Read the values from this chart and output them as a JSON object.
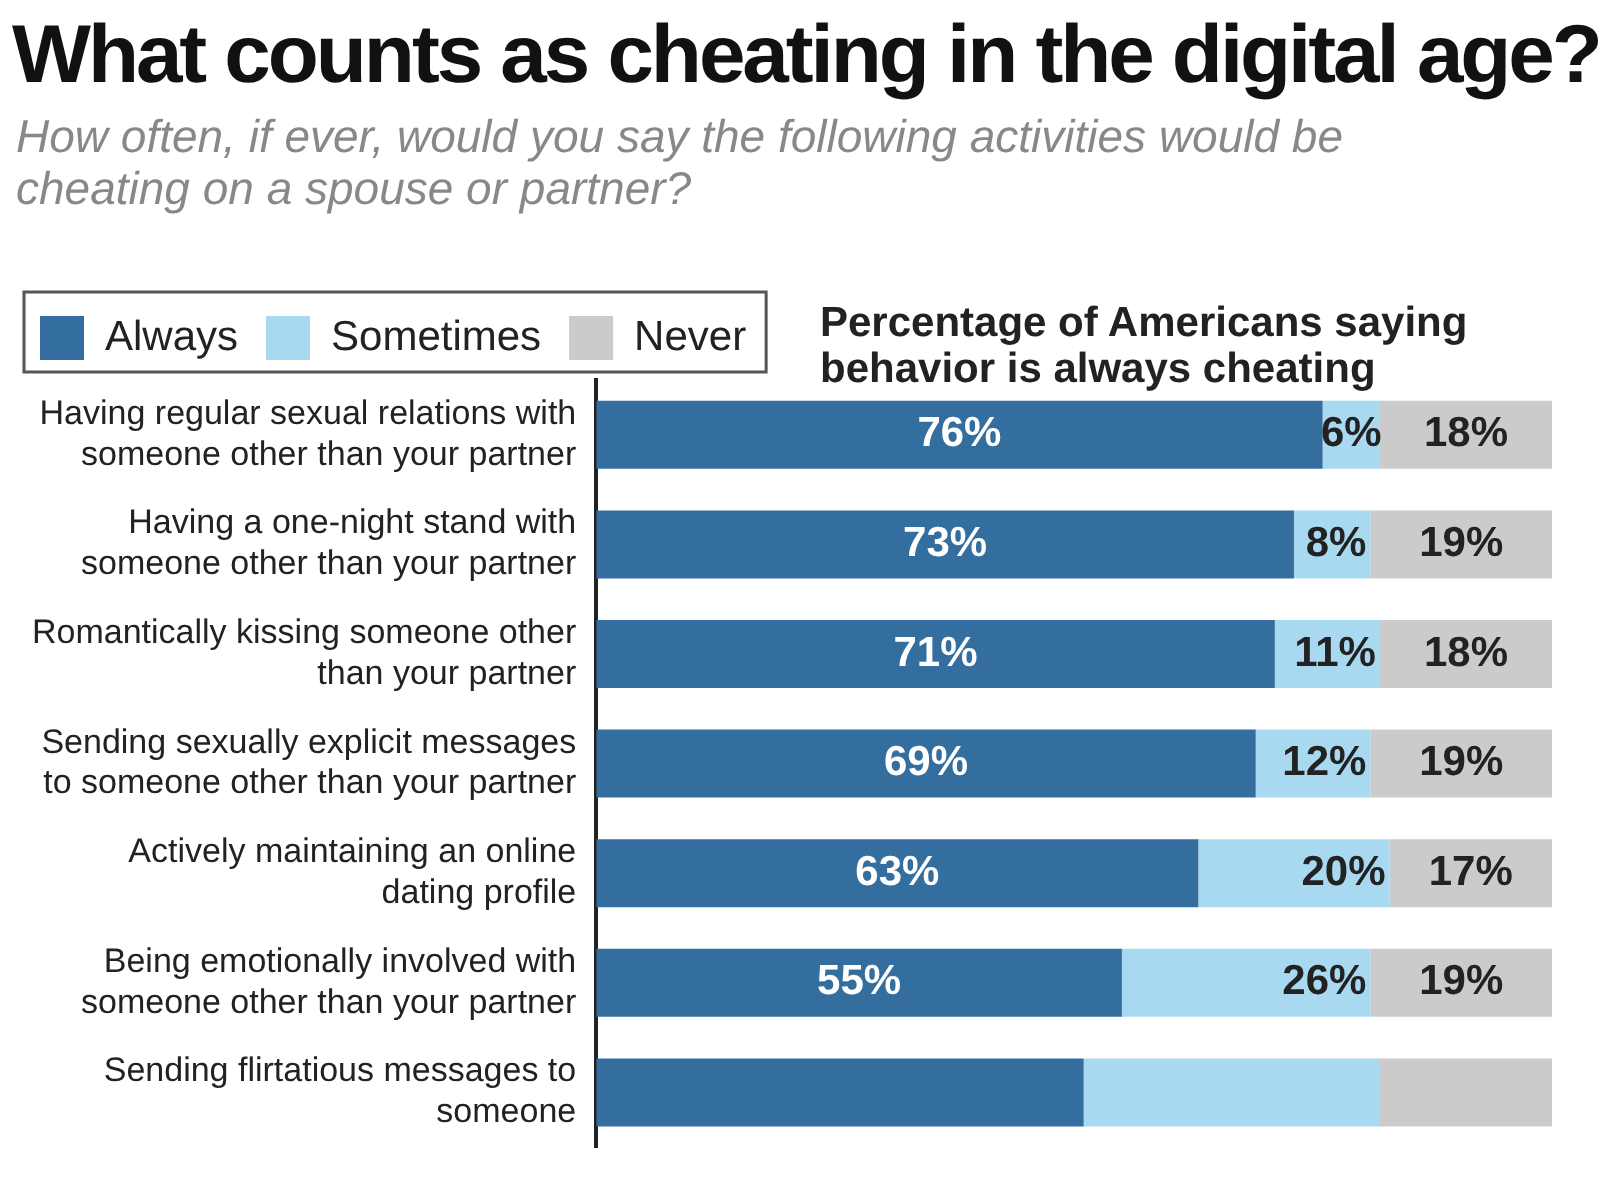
{
  "chart_data": {
    "type": "bar",
    "orientation": "horizontal",
    "stacked": true,
    "title": "What counts as cheating in the digital age?",
    "subtitle": "How often, if ever, would you say the following activities would be cheating on a spouse or partner?",
    "annotations": [
      "Percentage of Americans saying behavior is always cheating"
    ],
    "categories": [
      "Having regular sexual relations with someone other than your partner",
      "Having a one-night stand with someone other than your partner",
      "Romantically kissing someone other than your partner",
      "Sending sexually explicit messages to someone other than your partner",
      "Actively maintaining an online dating profile",
      "Being emotionally involved with someone other than your partner",
      "Sending flirtatious messages to someone"
    ],
    "series": [
      {
        "name": "Always",
        "color": "#336e9f",
        "values": [
          76,
          73,
          71,
          69,
          63,
          55,
          51
        ],
        "value_labels": [
          "76%",
          "73%",
          "71%",
          "69%",
          "63%",
          "55%",
          null
        ]
      },
      {
        "name": "Sometimes",
        "color": "#a9d9f0",
        "values": [
          6,
          8,
          11,
          12,
          20,
          26,
          31
        ],
        "value_labels": [
          "6%",
          "8%",
          "11%",
          "12%",
          "20%",
          "26%",
          null
        ]
      },
      {
        "name": "Never",
        "color": "#cbcbcb",
        "values": [
          18,
          19,
          18,
          19,
          17,
          19,
          18
        ],
        "value_labels": [
          "18%",
          "19%",
          "18%",
          "19%",
          "17%",
          "19%",
          null
        ]
      }
    ],
    "xlim": [
      0,
      100
    ],
    "tick_labels": "y",
    "grid": false,
    "legend": "top left"
  }
}
